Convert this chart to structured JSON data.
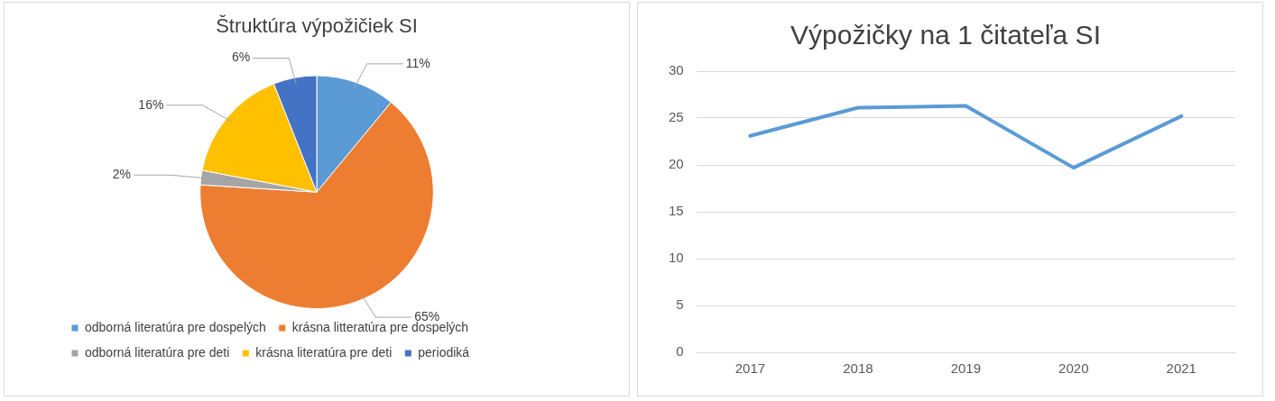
{
  "chart_data": [
    {
      "type": "pie",
      "title": "Štruktúra výpožičiek SI",
      "categories": [
        "odborná literatúra pre dospelých",
        "krásna litteratúra pre dospelých",
        "odborná literatúra pre deti",
        "krásna literatúra pre deti",
        "periodiká"
      ],
      "values": [
        11,
        65,
        2,
        16,
        6
      ],
      "value_labels": [
        "11%",
        "65%",
        "2%",
        "16%",
        "6%"
      ],
      "colors": [
        "#5b9bd5",
        "#ed7d31",
        "#a5a5a5",
        "#ffc000",
        "#4472c4"
      ],
      "legend": "bottom"
    },
    {
      "type": "line",
      "title": "Výpožičky na 1 čitateľa SI",
      "categories": [
        "2017",
        "2018",
        "2019",
        "2020",
        "2021"
      ],
      "series": [
        {
          "color": "#5b9bd5",
          "values": [
            23.1,
            26.1,
            26.3,
            19.7,
            25.2
          ]
        }
      ],
      "ylim": [
        0,
        30
      ],
      "yticks": [
        0,
        5,
        10,
        15,
        20,
        25,
        30
      ],
      "grid": "y",
      "legend": false,
      "marker": "none",
      "line_style": "solid"
    }
  ]
}
